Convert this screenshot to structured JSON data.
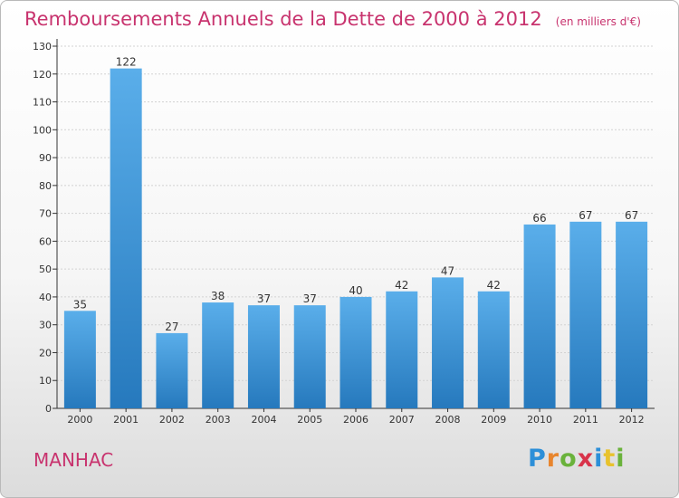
{
  "header": {
    "title": "Remboursements Annuels de la Dette de 2000 à 2012",
    "unit": "(en milliers d'€)"
  },
  "footer": {
    "commune": "MANHAC",
    "brand": [
      "P",
      "r",
      "o",
      "x",
      "i",
      "t",
      "i"
    ],
    "brand_colors": [
      "#2c8fd8",
      "#e8852d",
      "#6ab23b",
      "#d8334a",
      "#2c8fd8",
      "#e8c22d",
      "#6ab23b"
    ]
  },
  "colors": {
    "bar_top": "#5aaeea",
    "bar_bottom": "#2679bd",
    "title": "#c8336e"
  },
  "chart_data": {
    "type": "bar",
    "title": "Remboursements Annuels de la Dette de 2000 à 2012",
    "categories": [
      "2000",
      "2001",
      "2002",
      "2003",
      "2004",
      "2005",
      "2006",
      "2007",
      "2008",
      "2009",
      "2010",
      "2011",
      "2012"
    ],
    "values": [
      35,
      122,
      27,
      38,
      37,
      37,
      40,
      42,
      47,
      42,
      66,
      67,
      67
    ],
    "yticks": [
      0,
      10,
      20,
      30,
      40,
      50,
      60,
      70,
      80,
      90,
      100,
      110,
      120,
      130
    ],
    "ylim": [
      0,
      130
    ],
    "grid": true
  }
}
